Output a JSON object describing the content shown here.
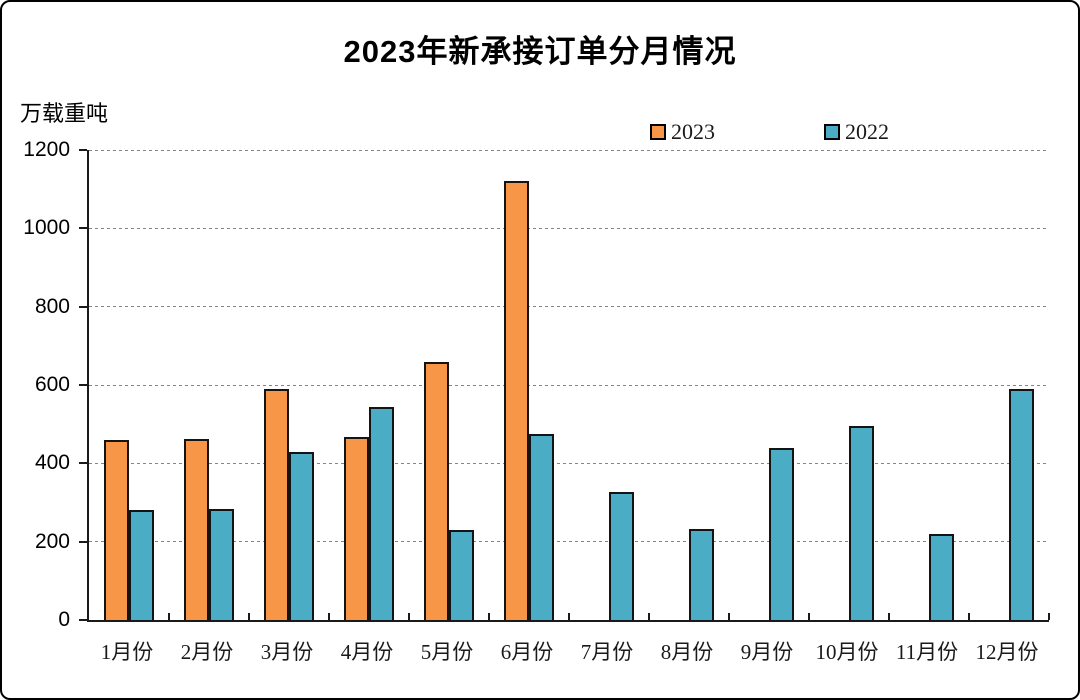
{
  "chart_data": {
    "type": "bar",
    "title": "2023年新承接订单分月情况",
    "ylabel": "万载重吨",
    "xlabel": "",
    "categories": [
      "1月份",
      "2月份",
      "3月份",
      "4月份",
      "5月份",
      "6月份",
      "7月份",
      "8月份",
      "9月份",
      "10月份",
      "11月份",
      "12月份"
    ],
    "series": [
      {
        "name": "2023",
        "color": "#F79646",
        "values": [
          460,
          463,
          591,
          466,
          659,
          1121,
          null,
          null,
          null,
          null,
          null,
          null
        ]
      },
      {
        "name": "2022",
        "color": "#4BACC6",
        "values": [
          280,
          283,
          428,
          545,
          229,
          476,
          328,
          232,
          439,
          496,
          219,
          591
        ]
      }
    ],
    "ylim": [
      0,
      1200
    ],
    "yticks": [
      0,
      200,
      400,
      600,
      800,
      1000,
      1200
    ],
    "grid": "horizontal-dashed",
    "legend_position": "top-center-inside",
    "bar_border_color": "#141414",
    "axis_color": "#1a1a1a",
    "gridline_color": "#858585"
  }
}
